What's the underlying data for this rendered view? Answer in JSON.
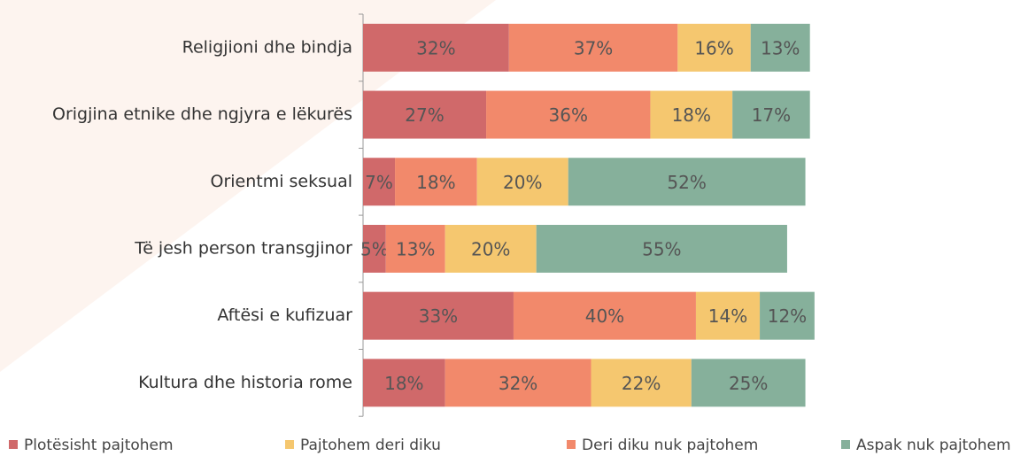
{
  "chart_data": {
    "type": "stacked-bar-horizontal",
    "categories": [
      "Religjioni dhe bindja",
      "Origjina etnike dhe ngjyra e lëkurës",
      "Orientmi seksual",
      "Të jesh person transgjinor",
      "Aftësi e kufizuar",
      "Kultura dhe historia rome"
    ],
    "series": [
      {
        "name": "Plotësisht pajtohem",
        "color": "#d0696a",
        "values": [
          32,
          27,
          7,
          5,
          33,
          18
        ],
        "value_labels": [
          "32%",
          "27%",
          "7%",
          "5%",
          "33%",
          "18%"
        ]
      },
      {
        "name": "Deri diku nuk pajtohem",
        "color": "#f2896b",
        "values": [
          37,
          36,
          18,
          13,
          40,
          32
        ],
        "value_labels": [
          "37%",
          "36%",
          "18%",
          "13%",
          "40%",
          "32%"
        ]
      },
      {
        "name": "Pajtohem deri diku",
        "color": "#f5c76f",
        "values": [
          16,
          18,
          20,
          20,
          14,
          22
        ],
        "value_labels": [
          "16%",
          "18%",
          "20%",
          "20%",
          "14%",
          "22%"
        ]
      },
      {
        "name": "Aspak nuk pajtohem",
        "color": "#86b09b",
        "values": [
          13,
          17,
          52,
          55,
          12,
          25
        ],
        "value_labels": [
          "13%",
          "17%",
          "52%",
          "55%",
          "12%",
          "25%"
        ]
      }
    ]
  }
}
